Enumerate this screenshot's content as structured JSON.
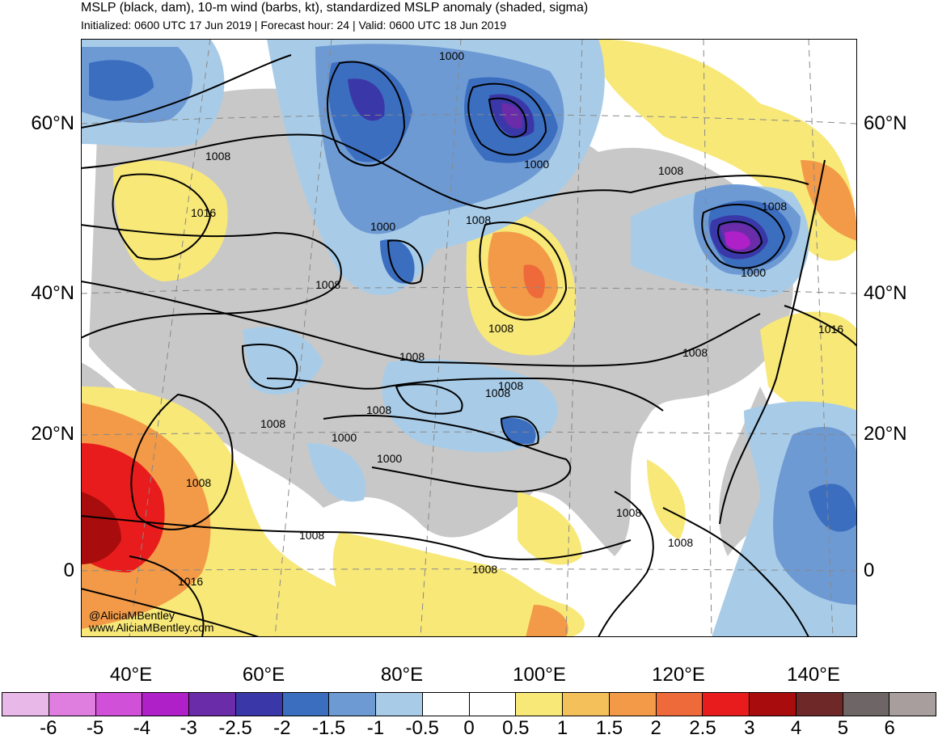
{
  "header": {
    "title": "MSLP (black, dam), 10-m wind (barbs, kt), standardized MSLP anomaly (shaded, sigma)",
    "subtitle": "Initialized: 0600 UTC 17 Jun 2019 | Forecast hour: 24 | Valid: 0600 UTC 18 Jun 2019"
  },
  "map": {
    "lat_labels": [
      "60°N",
      "40°N",
      "20°N",
      "0"
    ],
    "lon_labels": [
      "40°E",
      "60°E",
      "80°E",
      "100°E",
      "120°E",
      "140°E"
    ],
    "contour_labels": [
      "1000",
      "1008",
      "1016",
      "1008",
      "1000",
      "1008",
      "1000",
      "1008",
      "1008",
      "1000",
      "1008",
      "1008",
      "1016",
      "1008",
      "1008",
      "1008",
      "1008",
      "1008",
      "1000",
      "1000",
      "1008",
      "1008",
      "1008",
      "1008",
      "1016",
      "1008"
    ],
    "credit_handle": "@AliciaMBentley",
    "credit_url": "www.AliciaMBentley.com"
  },
  "colorbar": {
    "labels": [
      "-6",
      "-5",
      "-4",
      "-3",
      "-2.5",
      "-2",
      "-1.5",
      "-1",
      "-0.5",
      "0",
      "0.5",
      "1",
      "1.5",
      "2",
      "2.5",
      "3",
      "4",
      "5",
      "6"
    ],
    "colors": [
      "#e8b8e8",
      "#e07ee0",
      "#d050d8",
      "#b020c8",
      "#6a2ca8",
      "#3a38a8",
      "#3c6ec0",
      "#6e9ad4",
      "#a8cce8",
      "#ffffff",
      "#ffffff",
      "#f8e878",
      "#f4c05a",
      "#f29a48",
      "#ee6a3a",
      "#e81c1c",
      "#a80c0c",
      "#6e2828",
      "#6e6666",
      "#a89e9e"
    ]
  }
}
